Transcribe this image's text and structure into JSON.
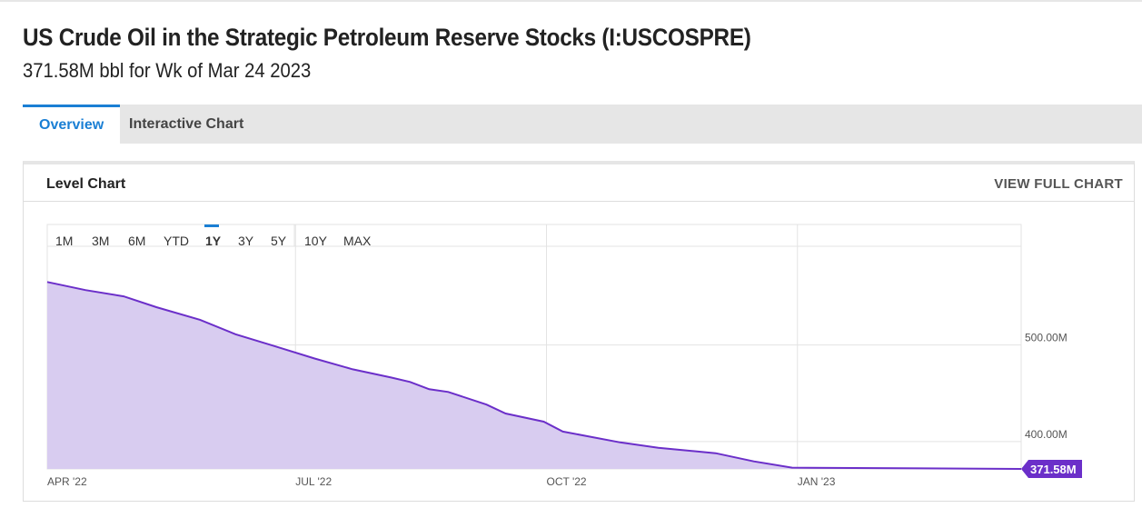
{
  "header": {
    "title": "US Crude Oil in the Strategic Petroleum Reserve Stocks (I:USCOSPRE)",
    "subtitle": "371.58M bbl for Wk of Mar 24 2023"
  },
  "tabs": [
    {
      "label": "Overview",
      "active": true
    },
    {
      "label": "Interactive Chart",
      "active": false
    }
  ],
  "panel": {
    "title": "Level Chart",
    "view_full": "VIEW FULL CHART"
  },
  "ranges": [
    "1M",
    "3M",
    "6M",
    "YTD",
    "1Y",
    "3Y",
    "5Y",
    "10Y",
    "MAX"
  ],
  "active_range": "1Y",
  "colors": {
    "line": "#6b2fc9",
    "fill": "#d8ccf0",
    "accent": "#1a7fd4"
  },
  "chart_data": {
    "type": "area",
    "title": "Level Chart",
    "xlabel": "",
    "ylabel": "",
    "x_ticks": [
      {
        "date": "2022-04-01",
        "label": "APR '22"
      },
      {
        "date": "2022-07-01",
        "label": "JUL '22"
      },
      {
        "date": "2022-10-01",
        "label": "OCT '22"
      },
      {
        "date": "2023-01-01",
        "label": "JAN '23"
      }
    ],
    "y_ticks": [
      {
        "value": 400,
        "label": "400.00M"
      },
      {
        "value": 500,
        "label": "500.00M"
      }
    ],
    "ylim": [
      371.58,
      625
    ],
    "xlim": [
      "2022-04-01",
      "2023-03-24"
    ],
    "last_value_label": "371.58M",
    "series": [
      {
        "name": "US Crude Oil in the Strategic Petroleum Reserve Stocks",
        "unit": "M bbl",
        "points": [
          [
            "2022-04-01",
            565.4
          ],
          [
            "2022-04-15",
            557.0
          ],
          [
            "2022-04-29",
            550.5
          ],
          [
            "2022-05-11",
            539.3
          ],
          [
            "2022-05-27",
            526.2
          ],
          [
            "2022-06-09",
            511.2
          ],
          [
            "2022-06-23",
            499.1
          ],
          [
            "2022-07-08",
            486.0
          ],
          [
            "2022-07-22",
            474.8
          ],
          [
            "2022-08-05",
            466.4
          ],
          [
            "2022-08-12",
            461.7
          ],
          [
            "2022-08-19",
            454.2
          ],
          [
            "2022-08-26",
            451.4
          ],
          [
            "2022-09-09",
            438.3
          ],
          [
            "2022-09-16",
            429.0
          ],
          [
            "2022-09-30",
            420.6
          ],
          [
            "2022-10-07",
            410.3
          ],
          [
            "2022-10-28",
            399.1
          ],
          [
            "2022-11-11",
            393.5
          ],
          [
            "2022-12-02",
            387.9
          ],
          [
            "2022-12-16",
            379.4
          ],
          [
            "2022-12-30",
            372.9
          ],
          [
            "2023-03-24",
            371.58
          ]
        ]
      }
    ]
  }
}
